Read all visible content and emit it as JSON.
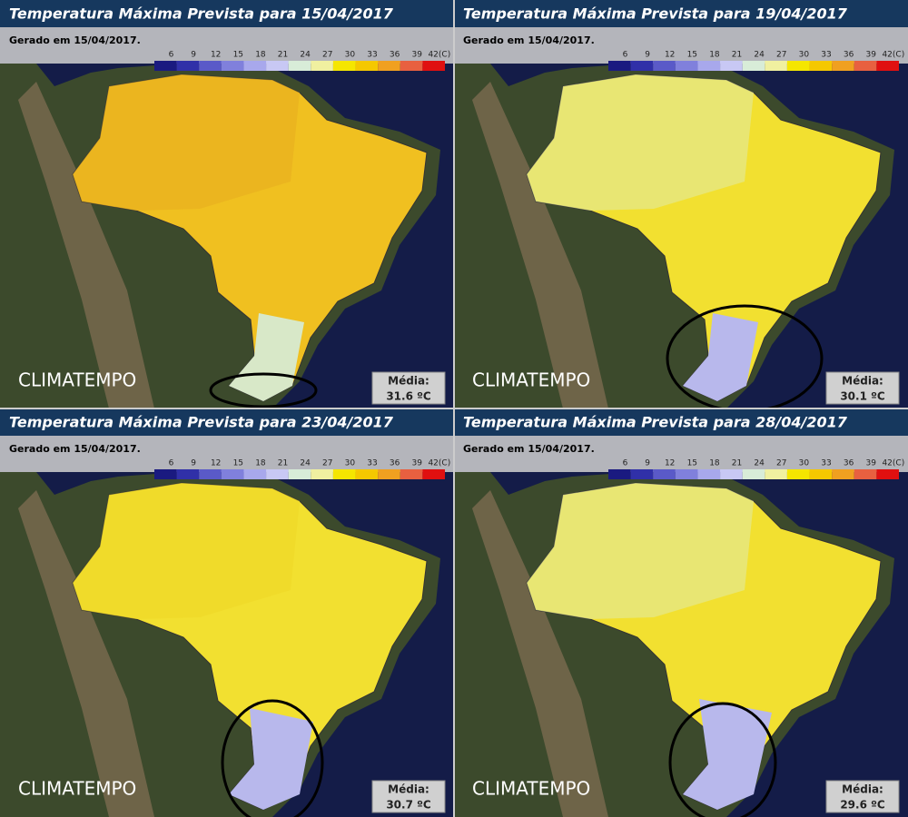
{
  "panels": [
    {
      "title": "Temperatura Máxima Prevista para 15/04/2017",
      "generated": "Gerado em 15/04/2017.",
      "media_value": "31.6 ºC"
    },
    {
      "title": "Temperatura Máxima Prevista para 19/04/2017",
      "generated": "Gerado em 15/04/2017.",
      "media_value": "30.1 ºC"
    },
    {
      "title": "Temperatura Máxima Prevista para 23/04/2017",
      "generated": "Gerado em 15/04/2017.",
      "media_value": "30.7 ºC"
    },
    {
      "title": "Temperatura Máxima Prevista para 28/04/2017",
      "generated": "Gerado em 15/04/2017.",
      "media_value": "29.6 ºC"
    }
  ],
  "legend": {
    "labels": [
      "6",
      "9",
      "12",
      "15",
      "18",
      "21",
      "24",
      "27",
      "30",
      "33",
      "36",
      "39",
      "42(C)"
    ],
    "colors": [
      "#1a1a80",
      "#3030a8",
      "#5a5ac8",
      "#8080dc",
      "#a8a8ec",
      "#c8c8f4",
      "#d8ecd8",
      "#f0f0a0",
      "#f5e600",
      "#f5c800",
      "#f0a020",
      "#e86040",
      "#e01010"
    ]
  },
  "media_label": "Média:",
  "brand": "CLIMATEMPO"
}
